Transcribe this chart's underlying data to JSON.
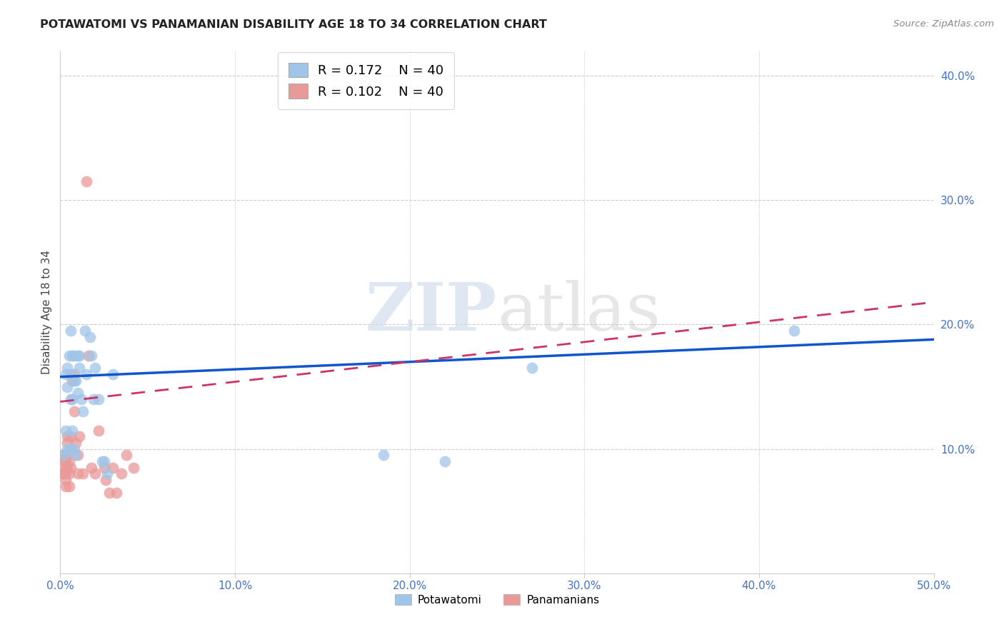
{
  "title": "POTAWATOMI VS PANAMANIAN DISABILITY AGE 18 TO 34 CORRELATION CHART",
  "source": "Source: ZipAtlas.com",
  "ylabel": "Disability Age 18 to 34",
  "xlim": [
    0.0,
    0.5
  ],
  "ylim": [
    0.0,
    0.42
  ],
  "xticks": [
    0.0,
    0.1,
    0.2,
    0.3,
    0.4,
    0.5
  ],
  "yticks": [
    0.1,
    0.2,
    0.3,
    0.4
  ],
  "xticklabels": [
    "0.0%",
    "10.0%",
    "20.0%",
    "30.0%",
    "40.0%",
    "50.0%"
  ],
  "yticklabels": [
    "10.0%",
    "20.0%",
    "30.0%",
    "40.0%"
  ],
  "blue_color": "#9fc5e8",
  "pink_color": "#ea9999",
  "trend_blue": "#1155cc",
  "trend_pink": "#cc3366",
  "legend_R_blue": "0.172",
  "legend_N_blue": "40",
  "legend_R_pink": "0.102",
  "legend_N_pink": "40",
  "watermark_zip": "ZIP",
  "watermark_atlas": "atlas",
  "background_color": "#ffffff",
  "tick_color": "#4472c4",
  "potawatomi_x": [
    0.002,
    0.003,
    0.003,
    0.004,
    0.004,
    0.004,
    0.005,
    0.005,
    0.006,
    0.006,
    0.006,
    0.007,
    0.007,
    0.007,
    0.008,
    0.008,
    0.008,
    0.009,
    0.009,
    0.01,
    0.01,
    0.011,
    0.011,
    0.012,
    0.013,
    0.014,
    0.015,
    0.017,
    0.018,
    0.019,
    0.02,
    0.022,
    0.024,
    0.025,
    0.027,
    0.03,
    0.185,
    0.22,
    0.27,
    0.42
  ],
  "potawatomi_y": [
    0.095,
    0.16,
    0.115,
    0.165,
    0.15,
    0.1,
    0.175,
    0.1,
    0.195,
    0.16,
    0.14,
    0.175,
    0.14,
    0.115,
    0.175,
    0.155,
    0.1,
    0.155,
    0.095,
    0.175,
    0.145,
    0.175,
    0.165,
    0.14,
    0.13,
    0.195,
    0.16,
    0.19,
    0.175,
    0.14,
    0.165,
    0.14,
    0.09,
    0.09,
    0.08,
    0.16,
    0.095,
    0.09,
    0.165,
    0.195
  ],
  "panamanian_x": [
    0.001,
    0.002,
    0.002,
    0.002,
    0.003,
    0.003,
    0.003,
    0.003,
    0.003,
    0.004,
    0.004,
    0.004,
    0.004,
    0.005,
    0.005,
    0.005,
    0.006,
    0.006,
    0.006,
    0.007,
    0.008,
    0.008,
    0.009,
    0.01,
    0.01,
    0.011,
    0.013,
    0.015,
    0.016,
    0.018,
    0.02,
    0.022,
    0.025,
    0.026,
    0.028,
    0.03,
    0.032,
    0.035,
    0.038,
    0.042
  ],
  "panamanian_y": [
    0.08,
    0.095,
    0.09,
    0.08,
    0.09,
    0.085,
    0.08,
    0.075,
    0.07,
    0.11,
    0.105,
    0.095,
    0.085,
    0.09,
    0.08,
    0.07,
    0.11,
    0.1,
    0.085,
    0.155,
    0.16,
    0.13,
    0.105,
    0.095,
    0.08,
    0.11,
    0.08,
    0.315,
    0.175,
    0.085,
    0.08,
    0.115,
    0.085,
    0.075,
    0.065,
    0.085,
    0.065,
    0.08,
    0.095,
    0.085
  ],
  "blue_intercept": 0.158,
  "blue_slope": 0.06,
  "pink_intercept": 0.138,
  "pink_slope": 0.16
}
